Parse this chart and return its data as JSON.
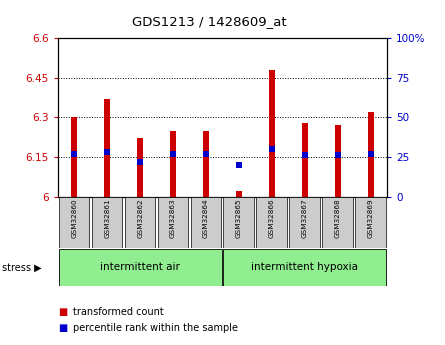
{
  "title": "GDS1213 / 1428609_at",
  "samples": [
    "GSM32860",
    "GSM32861",
    "GSM32862",
    "GSM32863",
    "GSM32864",
    "GSM32865",
    "GSM32866",
    "GSM32867",
    "GSM32868",
    "GSM32869"
  ],
  "bar_values": [
    6.3,
    6.37,
    6.22,
    6.25,
    6.25,
    6.02,
    6.48,
    6.28,
    6.27,
    6.32
  ],
  "percentile_values": [
    27,
    28,
    22,
    27,
    27,
    20,
    30,
    26,
    26,
    27
  ],
  "group1_label": "intermittent air",
  "group2_label": "intermittent hypoxia",
  "group1_count": 5,
  "group2_count": 5,
  "stress_label": "stress",
  "ylim_left": [
    6.0,
    6.6
  ],
  "ylim_right": [
    0,
    100
  ],
  "yticks_left": [
    6.0,
    6.15,
    6.3,
    6.45,
    6.6
  ],
  "yticks_right": [
    0,
    25,
    50,
    75,
    100
  ],
  "ytick_labels_left": [
    "6",
    "6.15",
    "6.3",
    "6.45",
    "6.6"
  ],
  "ytick_labels_right": [
    "0",
    "25",
    "50",
    "75",
    "100%"
  ],
  "bar_color": "#cc0000",
  "percentile_color": "#0000cc",
  "bar_width": 0.18,
  "group1_bg": "#90ee90",
  "group2_bg": "#90ee90",
  "tick_label_color_left": "#cc0000",
  "tick_label_color_right": "#0000cc",
  "legend_bar_label": "transformed count",
  "legend_pct_label": "percentile rank within the sample",
  "title_color": "#000000",
  "sample_box_color": "#cccccc",
  "fig_width": 4.45,
  "fig_height": 3.45,
  "dpi": 100
}
